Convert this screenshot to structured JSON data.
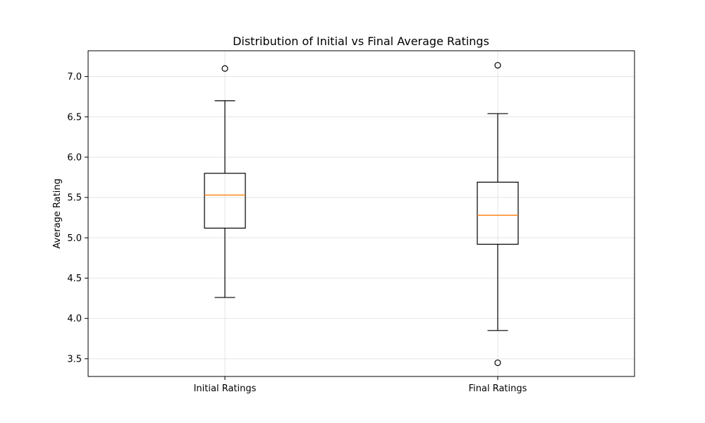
{
  "chart_data": {
    "type": "box",
    "title": "Distribution of Initial vs Final Average Ratings",
    "xlabel": "",
    "ylabel": "Average Rating",
    "ylim": [
      3.28,
      7.32
    ],
    "yticks": [
      3.5,
      4.0,
      4.5,
      5.0,
      5.5,
      6.0,
      6.5,
      7.0
    ],
    "ytick_labels": [
      "3.5",
      "4.0",
      "4.5",
      "5.0",
      "5.5",
      "6.0",
      "6.5",
      "7.0"
    ],
    "grid": true,
    "categories": [
      "Initial Ratings",
      "Final Ratings"
    ],
    "boxes": [
      {
        "whisker_low": 4.26,
        "q1": 5.12,
        "median": 5.53,
        "q3": 5.8,
        "whisker_high": 6.7,
        "outliers": [
          7.1
        ]
      },
      {
        "whisker_low": 3.85,
        "q1": 4.92,
        "median": 5.28,
        "q3": 5.69,
        "whisker_high": 6.54,
        "outliers": [
          7.14,
          3.45
        ]
      }
    ],
    "colors": {
      "box": "#000000",
      "median": "#ff7f0e",
      "grid": "#e5e5e5"
    }
  }
}
